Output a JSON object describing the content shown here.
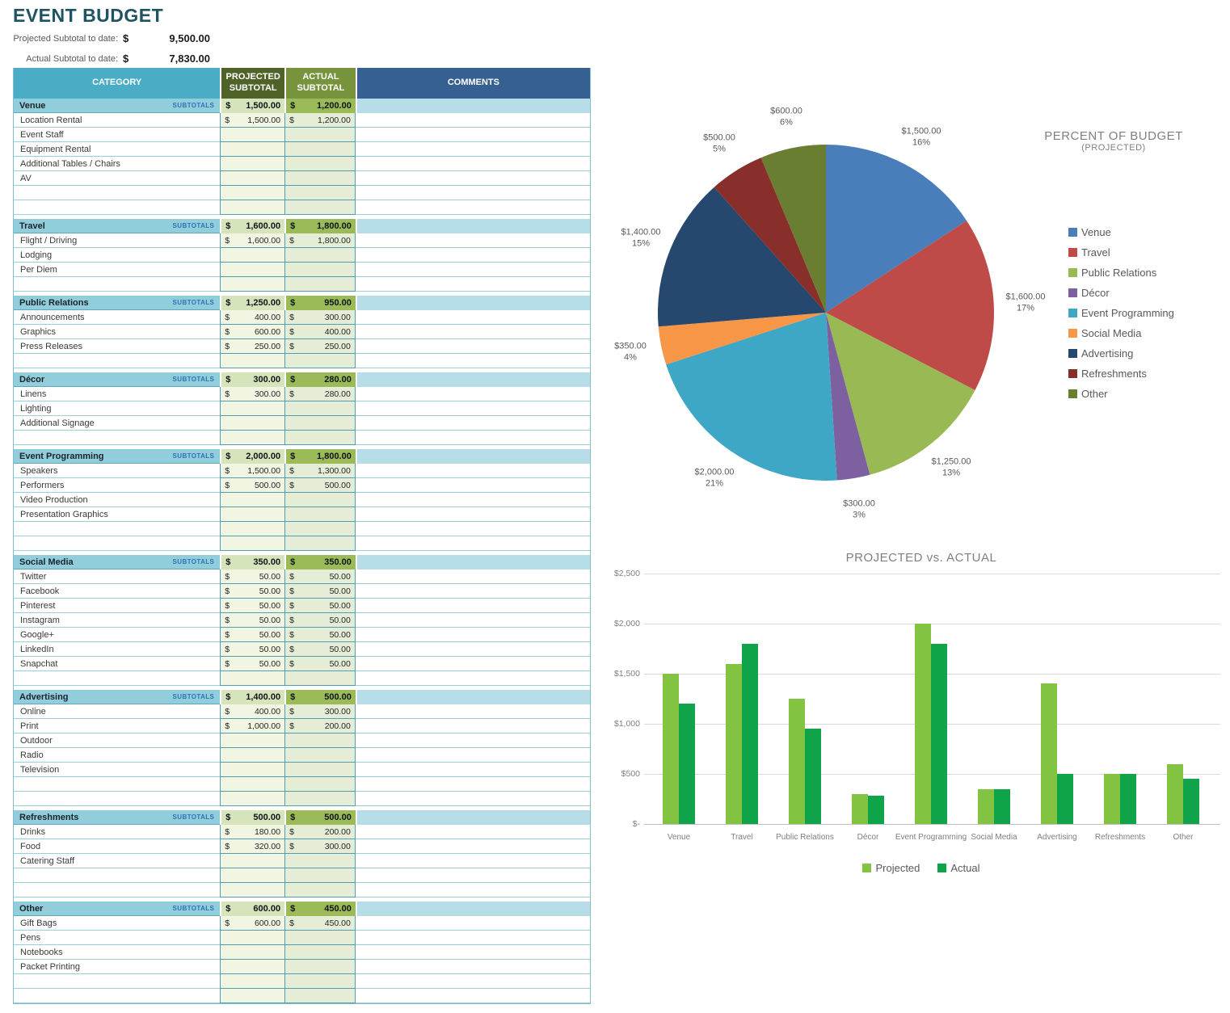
{
  "page": {
    "title": "EVENT BUDGET"
  },
  "summary": {
    "rows": [
      {
        "label": "Projected Subtotal to date:",
        "currency": "$",
        "value": "9,500.00"
      },
      {
        "label": "Actual Subtotal to date:",
        "currency": "$",
        "value": "7,830.00"
      }
    ]
  },
  "table": {
    "headers": {
      "category": "CATEGORY",
      "projected": "PROJECTED SUBTOTAL",
      "actual": "ACTUAL SUBTOTAL",
      "comments": "COMMENTS"
    },
    "subtotals_label": "SUBTOTALS",
    "currency": "$",
    "sections": [
      {
        "name": "Venue",
        "projected": "1,500.00",
        "actual": "1,200.00",
        "items": [
          {
            "name": "Location Rental",
            "projected": "1,500.00",
            "actual": "1,200.00"
          },
          {
            "name": "Event Staff",
            "projected": "",
            "actual": ""
          },
          {
            "name": "Equipment Rental",
            "projected": "",
            "actual": ""
          },
          {
            "name": "Additional Tables / Chairs",
            "projected": "",
            "actual": ""
          },
          {
            "name": "AV",
            "projected": "",
            "actual": ""
          },
          {
            "name": "",
            "projected": "",
            "actual": ""
          },
          {
            "name": "",
            "projected": "",
            "actual": ""
          }
        ]
      },
      {
        "name": "Travel",
        "projected": "1,600.00",
        "actual": "1,800.00",
        "items": [
          {
            "name": "Flight / Driving",
            "projected": "1,600.00",
            "actual": "1,800.00"
          },
          {
            "name": "Lodging",
            "projected": "",
            "actual": ""
          },
          {
            "name": "Per Diem",
            "projected": "",
            "actual": ""
          },
          {
            "name": "",
            "projected": "",
            "actual": ""
          }
        ]
      },
      {
        "name": "Public Relations",
        "projected": "1,250.00",
        "actual": "950.00",
        "items": [
          {
            "name": "Announcements",
            "projected": "400.00",
            "actual": "300.00"
          },
          {
            "name": "Graphics",
            "projected": "600.00",
            "actual": "400.00"
          },
          {
            "name": "Press Releases",
            "projected": "250.00",
            "actual": "250.00"
          },
          {
            "name": "",
            "projected": "",
            "actual": ""
          }
        ]
      },
      {
        "name": "Décor",
        "projected": "300.00",
        "actual": "280.00",
        "items": [
          {
            "name": "Linens",
            "projected": "300.00",
            "actual": "280.00"
          },
          {
            "name": "Lighting",
            "projected": "",
            "actual": ""
          },
          {
            "name": "Additional Signage",
            "projected": "",
            "actual": ""
          },
          {
            "name": "",
            "projected": "",
            "actual": ""
          }
        ]
      },
      {
        "name": "Event Programming",
        "projected": "2,000.00",
        "actual": "1,800.00",
        "items": [
          {
            "name": "Speakers",
            "projected": "1,500.00",
            "actual": "1,300.00"
          },
          {
            "name": "Performers",
            "projected": "500.00",
            "actual": "500.00"
          },
          {
            "name": "Video Production",
            "projected": "",
            "actual": ""
          },
          {
            "name": "Presentation Graphics",
            "projected": "",
            "actual": ""
          },
          {
            "name": "",
            "projected": "",
            "actual": ""
          },
          {
            "name": "",
            "projected": "",
            "actual": ""
          }
        ]
      },
      {
        "name": "Social Media",
        "projected": "350.00",
        "actual": "350.00",
        "items": [
          {
            "name": "Twitter",
            "projected": "50.00",
            "actual": "50.00"
          },
          {
            "name": "Facebook",
            "projected": "50.00",
            "actual": "50.00"
          },
          {
            "name": "Pinterest",
            "projected": "50.00",
            "actual": "50.00"
          },
          {
            "name": "Instagram",
            "projected": "50.00",
            "actual": "50.00"
          },
          {
            "name": "Google+",
            "projected": "50.00",
            "actual": "50.00"
          },
          {
            "name": "LinkedIn",
            "projected": "50.00",
            "actual": "50.00"
          },
          {
            "name": "Snapchat",
            "projected": "50.00",
            "actual": "50.00"
          },
          {
            "name": "",
            "projected": "",
            "actual": ""
          }
        ]
      },
      {
        "name": "Advertising",
        "projected": "1,400.00",
        "actual": "500.00",
        "items": [
          {
            "name": "Online",
            "projected": "400.00",
            "actual": "300.00"
          },
          {
            "name": "Print",
            "projected": "1,000.00",
            "actual": "200.00"
          },
          {
            "name": "Outdoor",
            "projected": "",
            "actual": ""
          },
          {
            "name": "Radio",
            "projected": "",
            "actual": ""
          },
          {
            "name": "Television",
            "projected": "",
            "actual": ""
          },
          {
            "name": "",
            "projected": "",
            "actual": ""
          },
          {
            "name": "",
            "projected": "",
            "actual": ""
          }
        ]
      },
      {
        "name": "Refreshments",
        "projected": "500.00",
        "actual": "500.00",
        "items": [
          {
            "name": "Drinks",
            "projected": "180.00",
            "actual": "200.00"
          },
          {
            "name": "Food",
            "projected": "320.00",
            "actual": "300.00"
          },
          {
            "name": "Catering Staff",
            "projected": "",
            "actual": ""
          },
          {
            "name": "",
            "projected": "",
            "actual": ""
          },
          {
            "name": "",
            "projected": "",
            "actual": ""
          }
        ]
      },
      {
        "name": "Other",
        "projected": "600.00",
        "actual": "450.00",
        "items": [
          {
            "name": "Gift Bags",
            "projected": "600.00",
            "actual": "450.00"
          },
          {
            "name": "Pens",
            "projected": "",
            "actual": ""
          },
          {
            "name": "Notebooks",
            "projected": "",
            "actual": ""
          },
          {
            "name": "Packet Printing",
            "projected": "",
            "actual": ""
          },
          {
            "name": "",
            "projected": "",
            "actual": ""
          },
          {
            "name": "",
            "projected": "",
            "actual": ""
          }
        ]
      }
    ]
  },
  "theme": {
    "title_color": "#1E5361",
    "header_category_bg": "#4BACC6",
    "header_projected_bg": "#4F6228",
    "header_actual_bg": "#77933C",
    "header_comments_bg": "#366092",
    "subtotal_category_bg": "#92CDDC",
    "subtotal_projected_bg": "#D6E4BC",
    "subtotal_actual_bg": "#9BBB59",
    "subtotal_comments_bg": "#B7DEE8",
    "item_projected_bg": "#F1F5E1",
    "item_actual_bg": "#E6EDD6",
    "subtotals_label_color": "#2E74B5"
  },
  "chart_data": [
    {
      "type": "pie",
      "title": "PERCENT OF BUDGET",
      "subtitle": "(PROJECTED)",
      "labels": [
        "Venue",
        "Travel",
        "Public Relations",
        "Décor",
        "Event Programming",
        "Social Media",
        "Advertising",
        "Refreshments",
        "Other"
      ],
      "values": [
        1500,
        1600,
        1250,
        300,
        2000,
        350,
        1400,
        500,
        600
      ],
      "value_labels": [
        "$1,500.00",
        "$1,600.00",
        "$1,250.00",
        "$300.00",
        "$2,000.00",
        "$350.00",
        "$1,400.00",
        "$500.00",
        "$600.00"
      ],
      "pct_labels": [
        "16%",
        "17%",
        "13%",
        "3%",
        "21%",
        "4%",
        "15%",
        "5%",
        "6%"
      ],
      "colors": [
        "#4A7EBB",
        "#BE4B48",
        "#98B954",
        "#7D60A0",
        "#3EA7C6",
        "#F79646",
        "#26476E",
        "#882E2B",
        "#697E31"
      ],
      "start_angle_deg": 0,
      "direction": "clockwise",
      "legend_position": "right"
    },
    {
      "type": "bar",
      "title": "PROJECTED vs. ACTUAL",
      "categories": [
        "Venue",
        "Travel",
        "Public Relations",
        "Décor",
        "Event Programming",
        "Social Media",
        "Advertising",
        "Refreshments",
        "Other"
      ],
      "series": [
        {
          "name": "Projected",
          "color": "#82C341",
          "values": [
            1500,
            1600,
            1250,
            300,
            2000,
            350,
            1400,
            500,
            600
          ]
        },
        {
          "name": "Actual",
          "color": "#10A44A",
          "values": [
            1200,
            1800,
            950,
            280,
            1800,
            350,
            500,
            500,
            450
          ]
        }
      ],
      "y_ticks": [
        "$2,500",
        "$2,000",
        "$1,500",
        "$1,000",
        "$500",
        "$-"
      ],
      "ylim": [
        0,
        2500
      ],
      "grid": true,
      "legend_position": "bottom"
    }
  ]
}
